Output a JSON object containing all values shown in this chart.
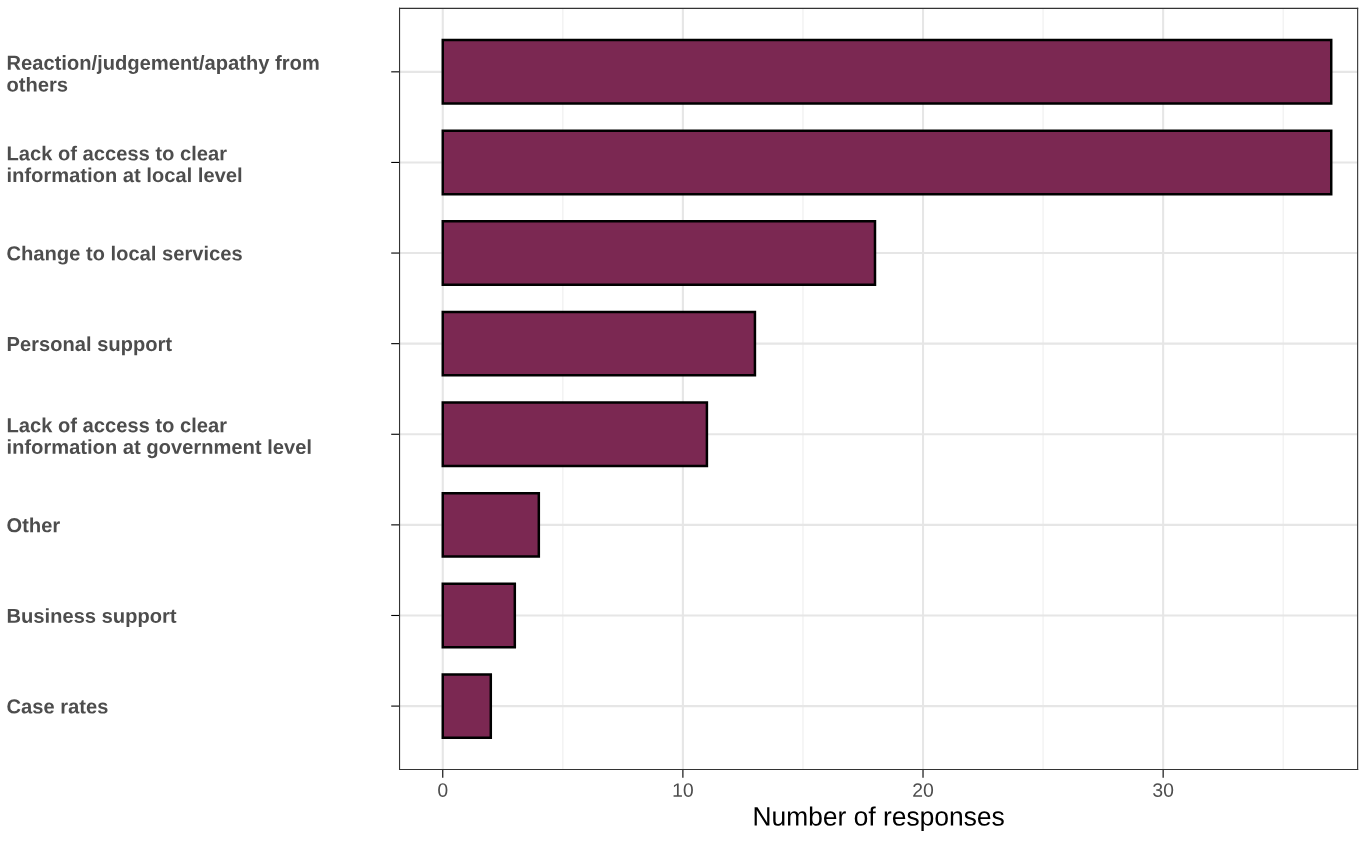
{
  "chart_data": {
    "type": "bar",
    "orientation": "horizontal",
    "xlabel": "Number of responses",
    "categories": [
      "Reaction/judgement/apathy from\nothers",
      "Lack of access to clear\ninformation at local level",
      "Change to local services",
      "Personal support",
      "Lack of access to clear\ninformation at government level",
      "Other",
      "Business support",
      "Case rates"
    ],
    "values": [
      37,
      37,
      18,
      13,
      11,
      4,
      3,
      2
    ],
    "color": "#7b2852",
    "xlim": [
      -1.8,
      38.1
    ],
    "xticks": [
      0,
      10,
      20,
      30
    ],
    "grid": true
  }
}
